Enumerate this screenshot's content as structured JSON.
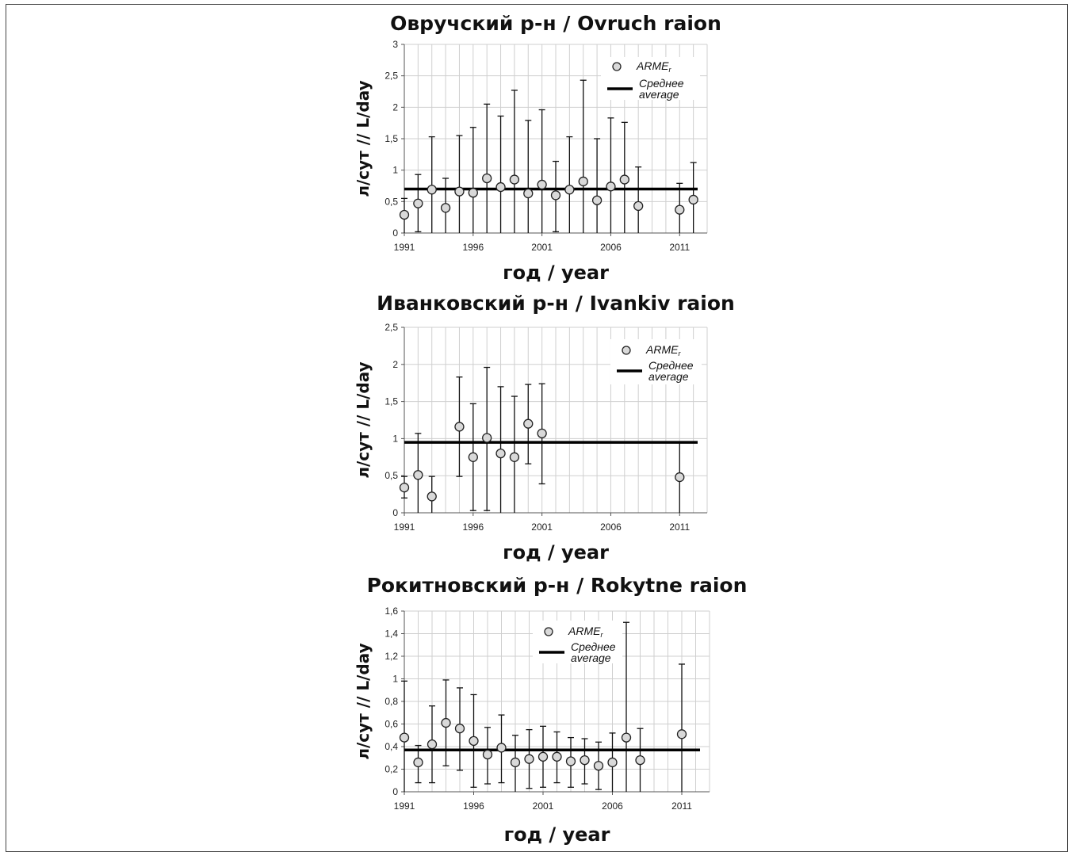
{
  "chart_data": [
    {
      "type": "scatter",
      "title": "Овручский р-н / Ovruch raion",
      "xlabel": "год / year",
      "ylabel": "л/сут // L/day",
      "ylim": [
        0,
        3
      ],
      "yticks": [
        "0",
        "0,5",
        "1",
        "1,5",
        "2",
        "2,5",
        "3"
      ],
      "xlim": [
        1991,
        2013
      ],
      "xticks": [
        "1991",
        "1996",
        "2001",
        "2006",
        "2011"
      ],
      "grid": true,
      "legend_position": "top-right",
      "series": [
        {
          "name": "ARME",
          "name_subscript": "r",
          "x": [
            1991,
            1992,
            1993,
            1994,
            1995,
            1996,
            1997,
            1998,
            1999,
            2000,
            2001,
            2002,
            2003,
            2004,
            2005,
            2006,
            2007,
            2008,
            2011,
            2012
          ],
          "y": [
            0.29,
            0.47,
            0.69,
            0.4,
            0.66,
            0.64,
            0.87,
            0.73,
            0.85,
            0.63,
            0.77,
            0.6,
            0.69,
            0.82,
            0.52,
            0.74,
            0.85,
            0.43,
            0.37,
            0.53
          ],
          "error_low": [
            0,
            0.02,
            0,
            0,
            0,
            0,
            0,
            0,
            0,
            0,
            0,
            0.02,
            0,
            0,
            0,
            0,
            0,
            0,
            0,
            0
          ],
          "error_high": [
            0.55,
            0.93,
            1.53,
            0.87,
            1.55,
            1.68,
            2.05,
            1.86,
            2.27,
            1.79,
            1.96,
            1.14,
            1.53,
            2.43,
            1.5,
            1.83,
            1.76,
            1.05,
            0.79,
            1.12
          ]
        },
        {
          "name": "Среднее",
          "name_line2": "average",
          "y": 0.7
        }
      ]
    },
    {
      "type": "scatter",
      "title": "Иванковский р-н / Ivankiv raion",
      "xlabel": "год / year",
      "ylabel": "л/сут // L/day",
      "ylim": [
        0,
        2.5
      ],
      "yticks": [
        "0",
        "0,5",
        "1",
        "1,5",
        "2",
        "2,5"
      ],
      "xlim": [
        1991,
        2013
      ],
      "xticks": [
        "1991",
        "1996",
        "2001",
        "2006",
        "2011"
      ],
      "grid": true,
      "legend_position": "top-right",
      "series": [
        {
          "name": "ARME",
          "name_subscript": "r",
          "x": [
            1991,
            1992,
            1993,
            1995,
            1996,
            1997,
            1998,
            1999,
            2000,
            2001,
            2011
          ],
          "y": [
            0.34,
            0.51,
            0.22,
            1.16,
            0.75,
            1.01,
            0.8,
            0.75,
            1.2,
            1.07,
            0.48
          ],
          "error_low": [
            0.2,
            0,
            0,
            0.49,
            0.03,
            0.03,
            0,
            0,
            0.66,
            0.39,
            0
          ],
          "error_high": [
            0.49,
            1.07,
            0.49,
            1.83,
            1.47,
            1.96,
            1.7,
            1.57,
            1.73,
            1.74,
            0.95
          ]
        },
        {
          "name": "Среднее",
          "name_line2": "average",
          "y": 0.95
        }
      ]
    },
    {
      "type": "scatter",
      "title": "Рокитновский р-н / Rokytne raion",
      "xlabel": "год / year",
      "ylabel": "л/сут // L/day",
      "ylim": [
        0,
        1.6
      ],
      "yticks": [
        "0",
        "0,2",
        "0,4",
        "0,6",
        "0,8",
        "1",
        "1,2",
        "1,4",
        "1,6"
      ],
      "xlim": [
        1991,
        2013
      ],
      "xticks": [
        "1991",
        "1996",
        "2001",
        "2006",
        "2011"
      ],
      "grid": true,
      "legend_position": "top-center",
      "series": [
        {
          "name": "ARME",
          "name_subscript": "r",
          "x": [
            1991,
            1992,
            1993,
            1994,
            1995,
            1996,
            1997,
            1998,
            1999,
            2000,
            2001,
            2002,
            2003,
            2004,
            2005,
            2006,
            2007,
            2008,
            2011
          ],
          "y": [
            0.48,
            0.26,
            0.42,
            0.61,
            0.56,
            0.45,
            0.33,
            0.39,
            0.26,
            0.29,
            0.31,
            0.31,
            0.27,
            0.28,
            0.23,
            0.26,
            0.48,
            0.28,
            0.51
          ],
          "error_low": [
            0,
            0.08,
            0.08,
            0.23,
            0.19,
            0.04,
            0.07,
            0.08,
            0,
            0.03,
            0.04,
            0.08,
            0.04,
            0.07,
            0.02,
            0,
            0,
            0,
            0
          ],
          "error_high": [
            0.98,
            0.41,
            0.76,
            0.99,
            0.92,
            0.86,
            0.57,
            0.68,
            0.5,
            0.55,
            0.58,
            0.53,
            0.48,
            0.47,
            0.44,
            0.52,
            1.5,
            0.56,
            1.13
          ]
        },
        {
          "name": "Среднее",
          "name_line2": "average",
          "y": 0.37
        }
      ]
    }
  ]
}
